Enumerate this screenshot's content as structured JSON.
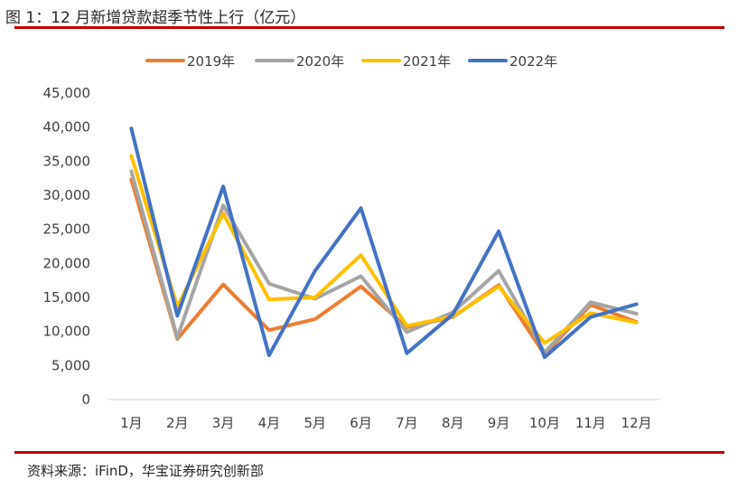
{
  "figure": {
    "title": "图 1：12 月新增贷款超季节性上行（亿元）",
    "source": "资料来源：iFinD，华宝证券研究创新部"
  },
  "colors": {
    "rule": "#c00000",
    "axis": "#d9d9d9",
    "text": "#404040"
  },
  "chart_data": {
    "type": "line",
    "title": "12 月新增贷款超季节性上行（亿元）",
    "xlabel": "",
    "ylabel": "",
    "ylim": [
      0,
      45000
    ],
    "yticks": [
      0,
      5000,
      10000,
      15000,
      20000,
      25000,
      30000,
      35000,
      40000,
      45000
    ],
    "ytick_labels": [
      "0",
      "5,000",
      "10,000",
      "15,000",
      "20,000",
      "25,000",
      "30,000",
      "35,000",
      "40,000",
      "45,000"
    ],
    "categories": [
      "1月",
      "2月",
      "3月",
      "4月",
      "5月",
      "6月",
      "7月",
      "8月",
      "9月",
      "10月",
      "11月",
      "12月"
    ],
    "grid": false,
    "legend_position": "top",
    "series": [
      {
        "name": "2019年",
        "color": "#ed7d31",
        "values": [
          32300,
          8900,
          16900,
          10200,
          11800,
          16600,
          10600,
          12100,
          16800,
          6600,
          13900,
          11400
        ]
      },
      {
        "name": "2020年",
        "color": "#a5a5a5",
        "values": [
          33500,
          9100,
          28500,
          17000,
          14800,
          18100,
          9900,
          12800,
          18900,
          6900,
          14300,
          12600
        ]
      },
      {
        "name": "2021年",
        "color": "#ffc000",
        "values": [
          35800,
          13600,
          27300,
          14700,
          15000,
          21200,
          10800,
          12200,
          16600,
          8300,
          12700,
          11300
        ]
      },
      {
        "name": "2022年",
        "color": "#4472c4",
        "values": [
          39800,
          12300,
          31300,
          6500,
          18900,
          28100,
          6800,
          12500,
          24700,
          6200,
          12100,
          14000
        ]
      }
    ]
  }
}
